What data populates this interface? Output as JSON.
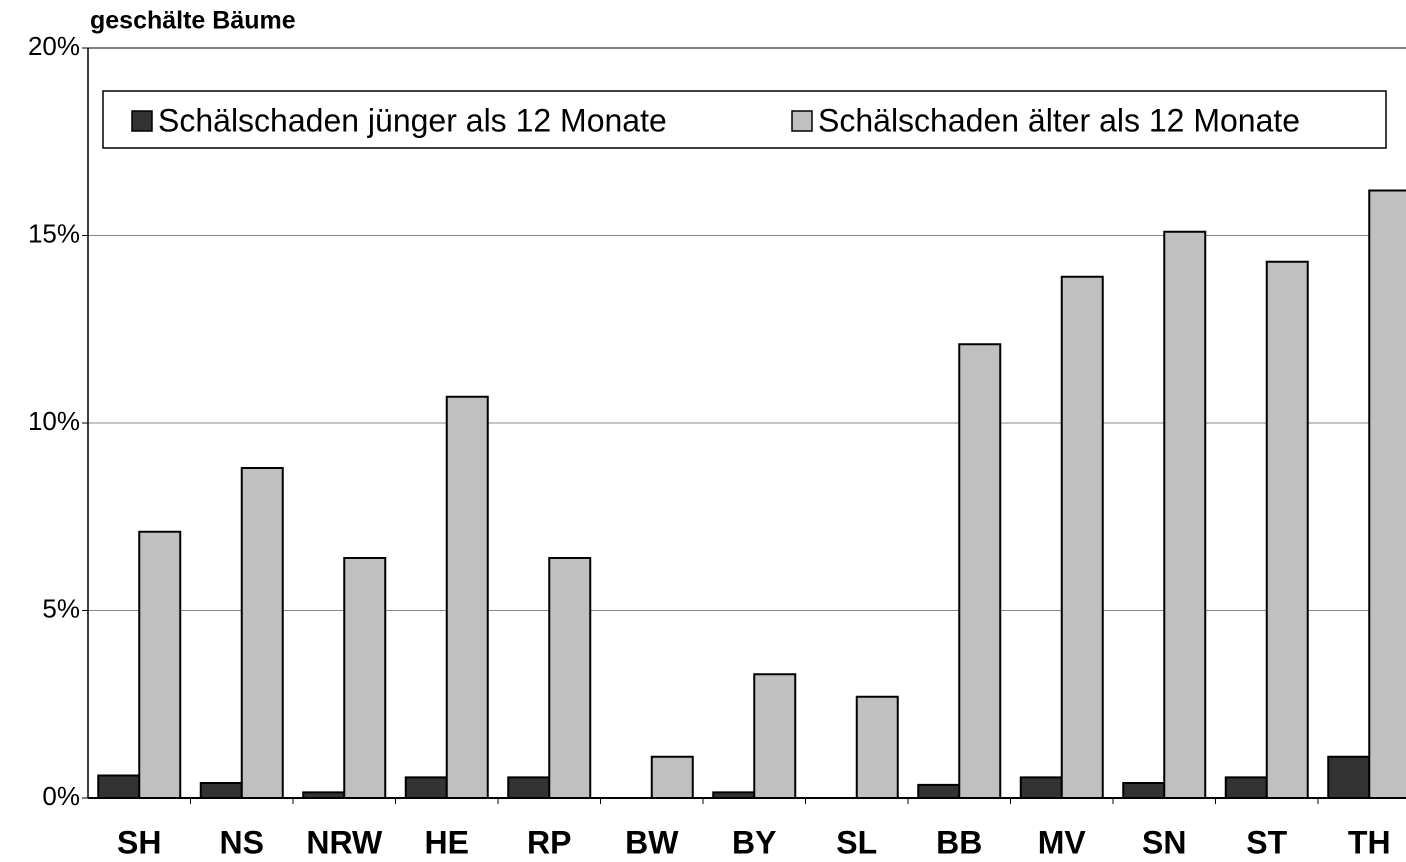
{
  "chart_data": {
    "type": "bar",
    "title": "geschälte Bäume",
    "categories": [
      "SH",
      "NS",
      "NRW",
      "HE",
      "RP",
      "BW",
      "BY",
      "SL",
      "BB",
      "MV",
      "SN",
      "ST",
      "TH"
    ],
    "series": [
      {
        "name": "Schälschaden jünger als 12 Monate",
        "color": "#333333",
        "values": [
          0.6,
          0.4,
          0.15,
          0.55,
          0.55,
          0,
          0.15,
          0,
          0.35,
          0.55,
          0.4,
          0.55,
          1.1
        ]
      },
      {
        "name": "Schälschaden älter als 12 Monate",
        "color": "#c0c0c0",
        "values": [
          7.1,
          8.8,
          6.4,
          10.7,
          6.4,
          1.1,
          3.3,
          2.7,
          12.1,
          13.9,
          15.1,
          14.3,
          16.2
        ]
      }
    ],
    "ylim": [
      0,
      20
    ],
    "yticks": [
      {
        "value": 0,
        "label": "0%"
      },
      {
        "value": 5,
        "label": "5%"
      },
      {
        "value": 10,
        "label": "10%"
      },
      {
        "value": 15,
        "label": "15%"
      },
      {
        "value": 20,
        "label": "20%"
      }
    ],
    "grid": true,
    "legend": "top"
  }
}
